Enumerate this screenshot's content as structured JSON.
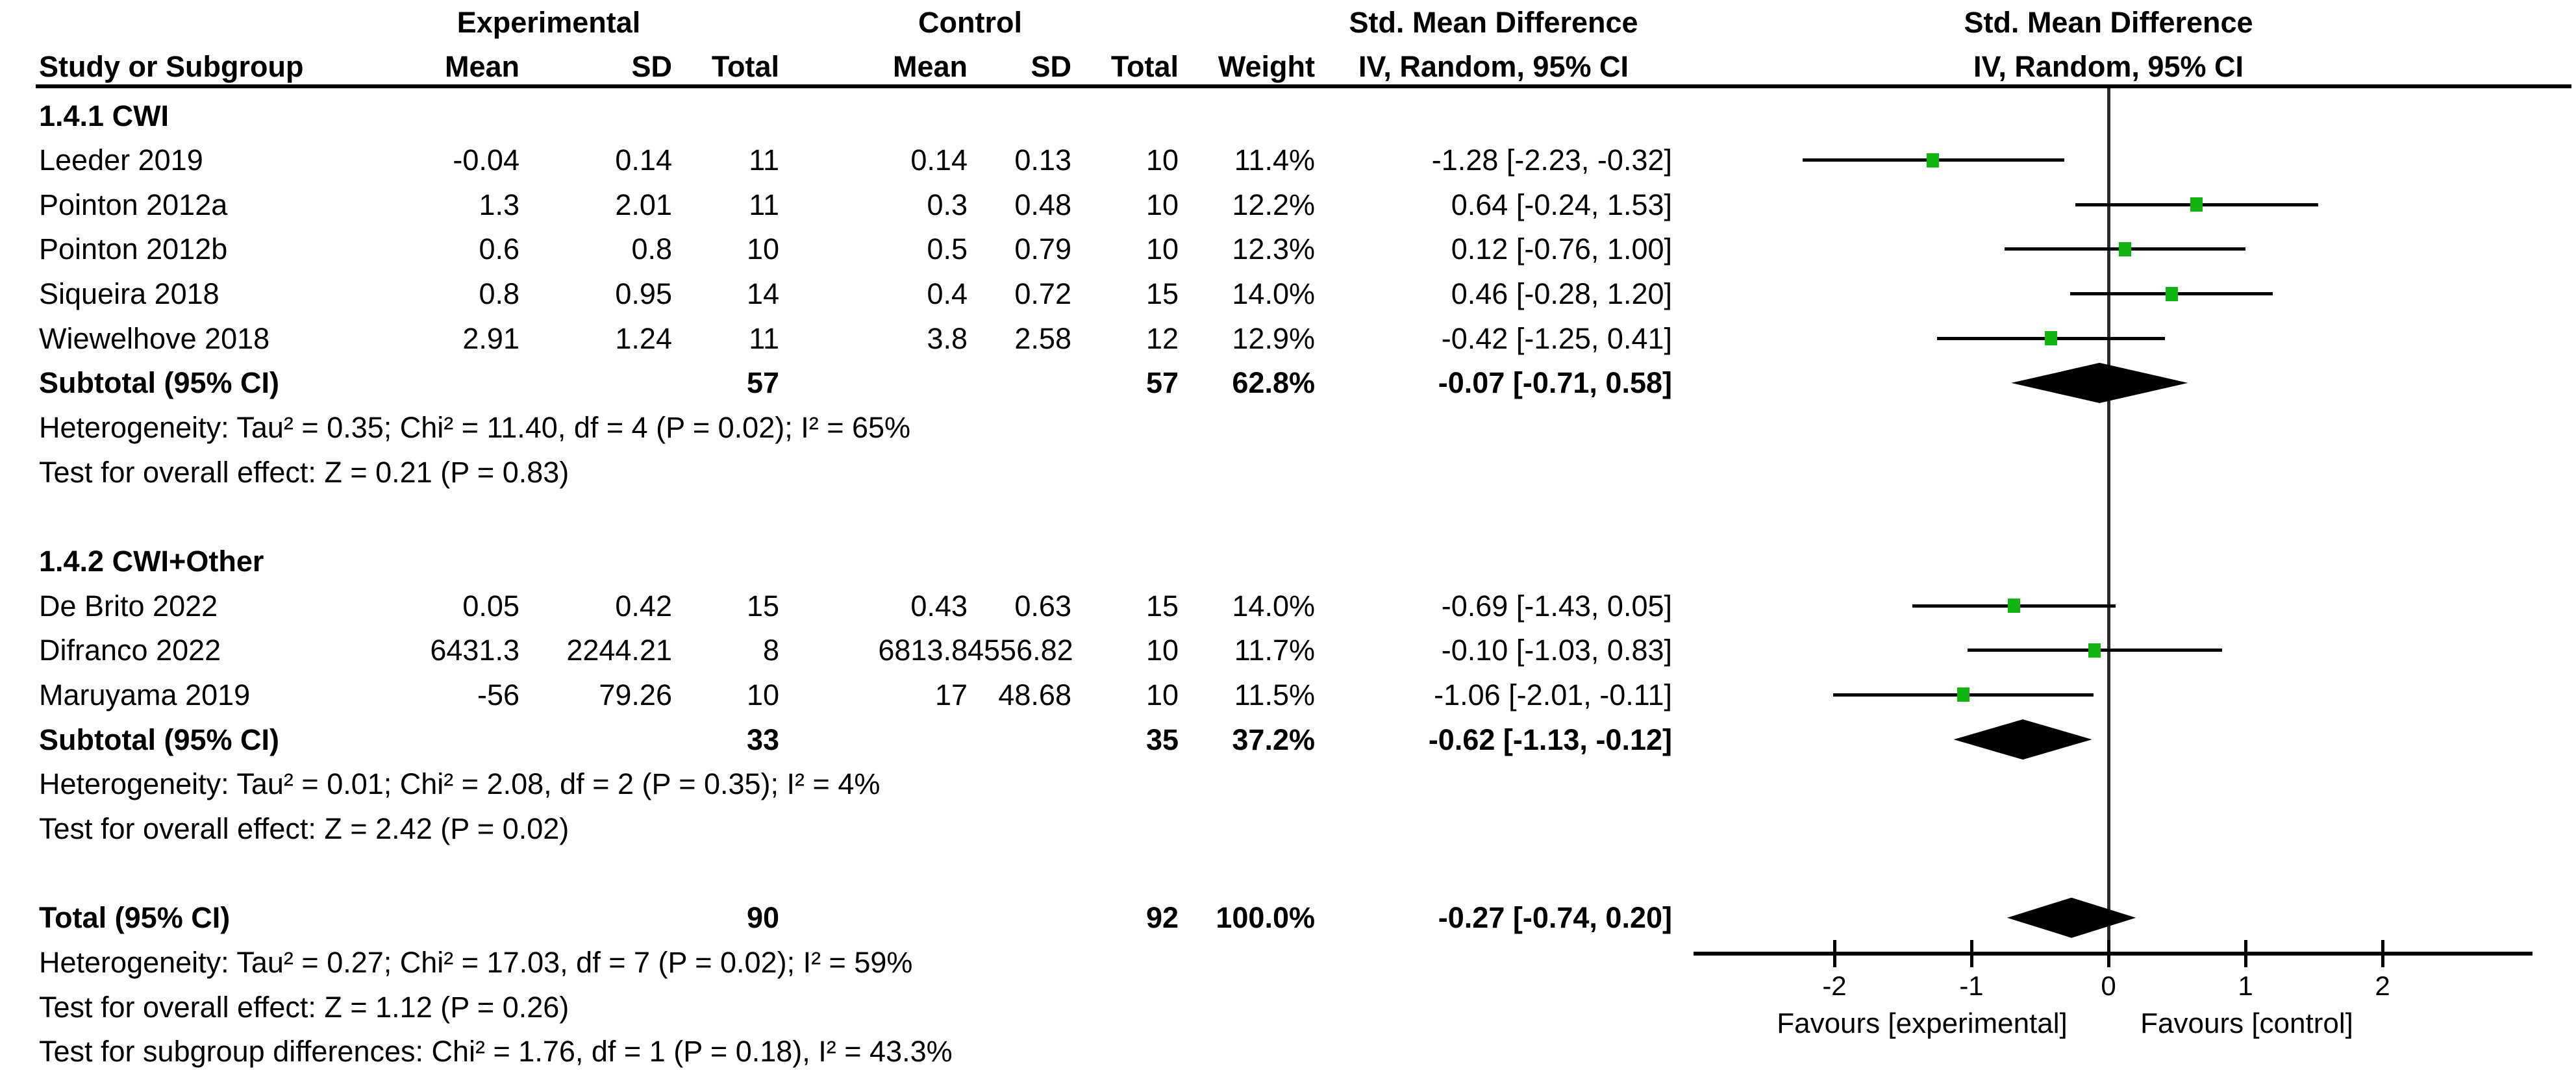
{
  "chart_data": {
    "type": "forest",
    "effect_measure": "Std. Mean Difference",
    "method": "IV, Random, 95% CI",
    "group_headers": {
      "experimental": "Experimental",
      "control": "Control",
      "smd_left": "Std. Mean Difference",
      "smd_right": "Std. Mean Difference"
    },
    "columns": {
      "study": "Study or Subgroup",
      "mean": "Mean",
      "sd": "SD",
      "total": "Total",
      "weight": "Weight",
      "ci": "IV, Random, 95% CI"
    },
    "subgroups": [
      {
        "label": "1.4.1 CWI",
        "studies": [
          {
            "name": "Leeder 2019",
            "e_mean": "-0.04",
            "e_sd": "0.14",
            "e_total": "11",
            "c_mean": "0.14",
            "c_sd": "0.13",
            "c_total": "10",
            "weight": "11.4%",
            "ci": "-1.28 [-2.23, -0.32]",
            "est": -1.28,
            "lo": -2.23,
            "hi": -0.32
          },
          {
            "name": "Pointon 2012a",
            "e_mean": "1.3",
            "e_sd": "2.01",
            "e_total": "11",
            "c_mean": "0.3",
            "c_sd": "0.48",
            "c_total": "10",
            "weight": "12.2%",
            "ci": "0.64 [-0.24, 1.53]",
            "est": 0.64,
            "lo": -0.24,
            "hi": 1.53
          },
          {
            "name": "Pointon 2012b",
            "e_mean": "0.6",
            "e_sd": "0.8",
            "e_total": "10",
            "c_mean": "0.5",
            "c_sd": "0.79",
            "c_total": "10",
            "weight": "12.3%",
            "ci": "0.12 [-0.76, 1.00]",
            "est": 0.12,
            "lo": -0.76,
            "hi": 1.0
          },
          {
            "name": "Siqueira 2018",
            "e_mean": "0.8",
            "e_sd": "0.95",
            "e_total": "14",
            "c_mean": "0.4",
            "c_sd": "0.72",
            "c_total": "15",
            "weight": "14.0%",
            "ci": "0.46 [-0.28, 1.20]",
            "est": 0.46,
            "lo": -0.28,
            "hi": 1.2
          },
          {
            "name": "Wiewelhove 2018",
            "e_mean": "2.91",
            "e_sd": "1.24",
            "e_total": "11",
            "c_mean": "3.8",
            "c_sd": "2.58",
            "c_total": "12",
            "weight": "12.9%",
            "ci": "-0.42 [-1.25, 0.41]",
            "est": -0.42,
            "lo": -1.25,
            "hi": 0.41
          }
        ],
        "subtotal": {
          "name": "Subtotal (95% CI)",
          "e_total": "57",
          "c_total": "57",
          "weight": "62.8%",
          "ci": "-0.07 [-0.71, 0.58]",
          "est": -0.07,
          "lo": -0.71,
          "hi": 0.58
        },
        "heterogeneity": "Heterogeneity: Tau² = 0.35; Chi² = 11.40, df = 4 (P = 0.02); I² = 65%",
        "overall_test": "Test for overall effect: Z = 0.21 (P = 0.83)"
      },
      {
        "label": "1.4.2 CWI+Other",
        "studies": [
          {
            "name": "De Brito 2022",
            "e_mean": "0.05",
            "e_sd": "0.42",
            "e_total": "15",
            "c_mean": "0.43",
            "c_sd": "0.63",
            "c_total": "15",
            "weight": "14.0%",
            "ci": "-0.69 [-1.43, 0.05]",
            "est": -0.69,
            "lo": -1.43,
            "hi": 0.05
          },
          {
            "name": "Difranco 2022",
            "e_mean": "6431.3",
            "e_sd": "2244.21",
            "e_total": "8",
            "c_mean": "6813.8",
            "c_sd": "4556.82",
            "c_total": "10",
            "weight": "11.7%",
            "ci": "-0.10 [-1.03, 0.83]",
            "est": -0.1,
            "lo": -1.03,
            "hi": 0.83
          },
          {
            "name": "Maruyama 2019",
            "e_mean": "-56",
            "e_sd": "79.26",
            "e_total": "10",
            "c_mean": "17",
            "c_sd": "48.68",
            "c_total": "10",
            "weight": "11.5%",
            "ci": "-1.06 [-2.01, -0.11]",
            "est": -1.06,
            "lo": -2.01,
            "hi": -0.11
          }
        ],
        "subtotal": {
          "name": "Subtotal (95% CI)",
          "e_total": "33",
          "c_total": "35",
          "weight": "37.2%",
          "ci": "-0.62 [-1.13, -0.12]",
          "est": -0.62,
          "lo": -1.13,
          "hi": -0.12
        },
        "heterogeneity": "Heterogeneity: Tau² = 0.01; Chi² = 2.08, df = 2 (P = 0.35); I² = 4%",
        "overall_test": "Test for overall effect: Z = 2.42 (P = 0.02)"
      }
    ],
    "total": {
      "name": "Total (95% CI)",
      "e_total": "90",
      "c_total": "92",
      "weight": "100.0%",
      "ci": "-0.27 [-0.74, 0.20]",
      "est": -0.27,
      "lo": -0.74,
      "hi": 0.2
    },
    "footer_lines": [
      "Heterogeneity: Tau² = 0.27; Chi² = 17.03, df = 7 (P = 0.02); I² = 59%",
      "Test for overall effect: Z = 1.12 (P = 0.26)",
      "Test for subgroup differences: Chi² = 1.76, df = 1 (P = 0.18), I² = 43.3%"
    ],
    "axis": {
      "ticks": [
        "-2",
        "-1",
        "0",
        "1",
        "2"
      ],
      "favours_left": "Favours [experimental]",
      "favours_right": "Favours [control]"
    },
    "colors": {
      "marker": "#12b412",
      "summary": "#000000",
      "line": "#000000"
    }
  }
}
